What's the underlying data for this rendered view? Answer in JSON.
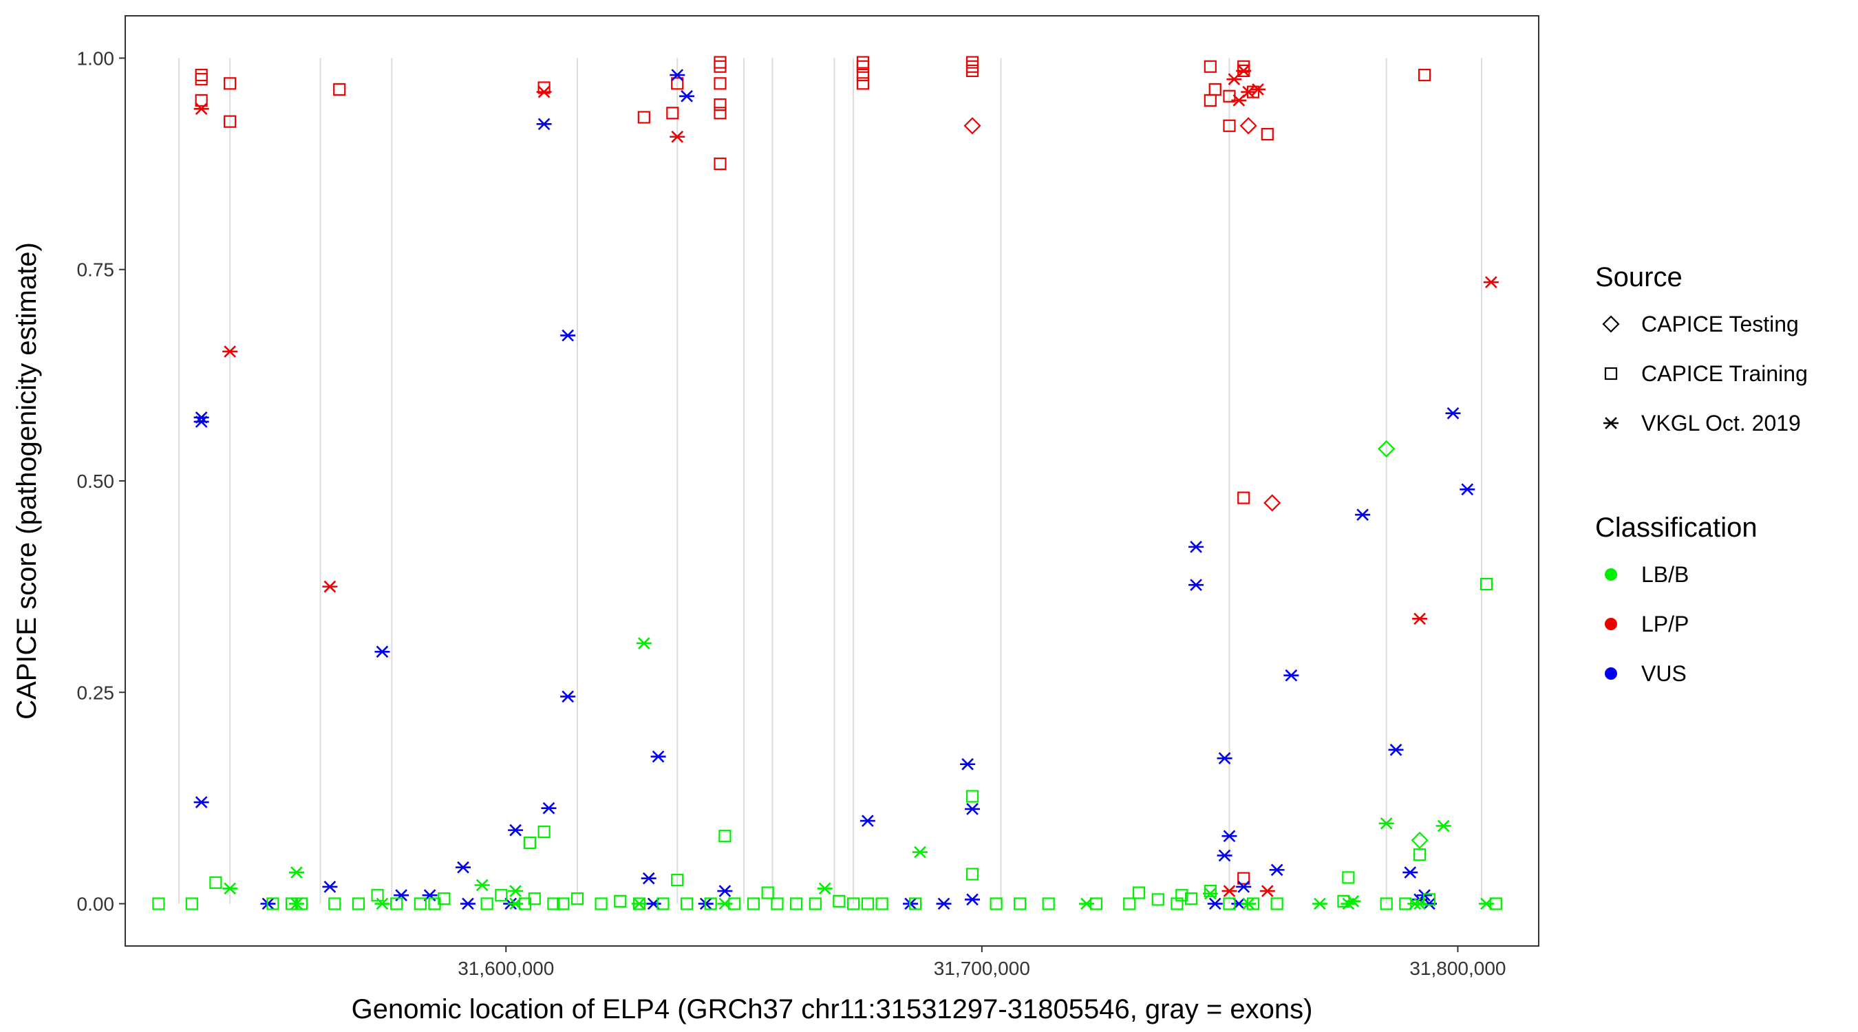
{
  "chart_data": {
    "type": "scatter",
    "title": "",
    "xlabel": "Genomic location of ELP4 (GRCh37 chr11:31531297-31805546, gray = exons)",
    "ylabel": "CAPICE score (pathogenicity estimate)",
    "xlim": [
      31520000,
      31817000
    ],
    "ylim": [
      -0.05,
      1.05
    ],
    "x_ticks": [
      31600000,
      31700000,
      31800000
    ],
    "x_tick_labels": [
      "31,600,000",
      "31,700,000",
      "31,800,000"
    ],
    "y_ticks": [
      0,
      0.25,
      0.5,
      0.75,
      1.0
    ],
    "y_tick_labels": [
      "0.00",
      "0.25",
      "0.50",
      "0.75",
      "1.00"
    ],
    "exons": [
      31531300,
      31542000,
      31561000,
      31576000,
      31615000,
      31636000,
      31650000,
      31656000,
      31669000,
      31673000,
      31704000,
      31752000,
      31785000,
      31805000
    ],
    "colors": {
      "LB/B": "#00ee00",
      "LP/P": "#ee0000",
      "VUS": "#0000ee",
      "exon": "#dcdcdc"
    },
    "legend": {
      "source_title": "Source",
      "sources": [
        {
          "key": "testing",
          "label": "CAPICE Testing",
          "shape": "diamond"
        },
        {
          "key": "training",
          "label": "CAPICE Training",
          "shape": "square"
        },
        {
          "key": "vkgl",
          "label": "VKGL Oct. 2019",
          "shape": "asterisk"
        }
      ],
      "class_title": "Classification",
      "classes": [
        "LB/B",
        "LP/P",
        "VUS"
      ]
    },
    "series": [
      {
        "name": "CAPICE Training LP/P",
        "source": "training",
        "class": "LP/P",
        "points": [
          [
            31536000,
            0.98
          ],
          [
            31536000,
            0.95
          ],
          [
            31536000,
            0.975
          ],
          [
            31542000,
            0.97
          ],
          [
            31542000,
            0.925
          ],
          [
            31565000,
            0.963
          ],
          [
            31608000,
            0.965
          ],
          [
            31629000,
            0.93
          ],
          [
            31635000,
            0.935
          ],
          [
            31636000,
            0.97
          ],
          [
            31645000,
            0.99
          ],
          [
            31645000,
            0.995
          ],
          [
            31645000,
            0.97
          ],
          [
            31645000,
            0.945
          ],
          [
            31645000,
            0.935
          ],
          [
            31645000,
            0.875
          ],
          [
            31675000,
            0.99
          ],
          [
            31675000,
            0.98
          ],
          [
            31675000,
            0.97
          ],
          [
            31675000,
            0.995
          ],
          [
            31698000,
            0.99
          ],
          [
            31698000,
            0.985
          ],
          [
            31698000,
            0.995
          ],
          [
            31748000,
            0.99
          ],
          [
            31749000,
            0.963
          ],
          [
            31748000,
            0.95
          ],
          [
            31752000,
            0.955
          ],
          [
            31752000,
            0.92
          ],
          [
            31755000,
            0.99
          ],
          [
            31755000,
            0.985
          ],
          [
            31757000,
            0.96
          ],
          [
            31760000,
            0.91
          ],
          [
            31755000,
            0.48
          ],
          [
            31755000,
            0.03
          ],
          [
            31793000,
            0.98
          ]
        ]
      },
      {
        "name": "CAPICE Testing LP/P",
        "source": "testing",
        "class": "LP/P",
        "points": [
          [
            31698000,
            0.92
          ],
          [
            31756000,
            0.92
          ],
          [
            31761000,
            0.474
          ]
        ]
      },
      {
        "name": "CAPICE Testing LB/B",
        "source": "testing",
        "class": "LB/B",
        "points": [
          [
            31785000,
            0.538
          ],
          [
            31792000,
            0.075
          ]
        ]
      },
      {
        "name": "VKGL LP/P",
        "source": "vkgl",
        "class": "LP/P",
        "points": [
          [
            31536000,
            0.94
          ],
          [
            31542000,
            0.653
          ],
          [
            31563000,
            0.375
          ],
          [
            31608000,
            0.96
          ],
          [
            31636000,
            0.907
          ],
          [
            31755000,
            0.985
          ],
          [
            31756000,
            0.96
          ],
          [
            31758000,
            0.963
          ],
          [
            31754000,
            0.95
          ],
          [
            31753000,
            0.975
          ],
          [
            31807000,
            0.735
          ],
          [
            31792000,
            0.337
          ],
          [
            31752000,
            0.015
          ],
          [
            31760000,
            0.015
          ]
        ]
      },
      {
        "name": "VKGL VUS",
        "source": "vkgl",
        "class": "VUS",
        "points": [
          [
            31536000,
            0.575
          ],
          [
            31536000,
            0.57
          ],
          [
            31536000,
            0.12
          ],
          [
            31608000,
            0.922
          ],
          [
            31613000,
            0.672
          ],
          [
            31613000,
            0.245
          ],
          [
            31574000,
            0.298
          ],
          [
            31636000,
            0.98
          ],
          [
            31638000,
            0.955
          ],
          [
            31609000,
            0.113
          ],
          [
            31632000,
            0.174
          ],
          [
            31602000,
            0.087
          ],
          [
            31630000,
            0.03
          ],
          [
            31646000,
            0.015
          ],
          [
            31676000,
            0.098
          ],
          [
            31697000,
            0.165
          ],
          [
            31698000,
            0.112
          ],
          [
            31745000,
            0.422
          ],
          [
            31745000,
            0.377
          ],
          [
            31751000,
            0.172
          ],
          [
            31752000,
            0.08
          ],
          [
            31751000,
            0.057
          ],
          [
            31765000,
            0.27
          ],
          [
            31762000,
            0.04
          ],
          [
            31755000,
            0.02
          ],
          [
            31780000,
            0.46
          ],
          [
            31787000,
            0.182
          ],
          [
            31799000,
            0.58
          ],
          [
            31802000,
            0.49
          ],
          [
            31790000,
            0.037
          ],
          [
            31793000,
            0.01
          ],
          [
            31792000,
            0.005
          ],
          [
            31563000,
            0.02
          ],
          [
            31578000,
            0.01
          ],
          [
            31584000,
            0.01
          ],
          [
            31591000,
            0.043
          ],
          [
            31550000,
            0.0
          ],
          [
            31592000,
            0.0
          ],
          [
            31601000,
            0.0
          ],
          [
            31631000,
            0.0
          ],
          [
            31642000,
            0.0
          ],
          [
            31685000,
            0.0
          ],
          [
            31692000,
            0.0
          ],
          [
            31698000,
            0.005
          ],
          [
            31749000,
            0.0
          ],
          [
            31754000,
            0.0
          ],
          [
            31794000,
            0.0
          ]
        ]
      },
      {
        "name": "VKGL LB/B",
        "source": "vkgl",
        "class": "LB/B",
        "points": [
          [
            31542000,
            0.018
          ],
          [
            31556000,
            0.037
          ],
          [
            31629000,
            0.308
          ],
          [
            31595000,
            0.022
          ],
          [
            31602000,
            0.015
          ],
          [
            31667000,
            0.018
          ],
          [
            31687000,
            0.061
          ],
          [
            31785000,
            0.095
          ],
          [
            31797000,
            0.092
          ],
          [
            31556000,
            0.0
          ],
          [
            31574000,
            0.0
          ],
          [
            31602000,
            0.0
          ],
          [
            31628000,
            0.0
          ],
          [
            31646000,
            0.0
          ],
          [
            31722000,
            0.0
          ],
          [
            31748000,
            0.012
          ],
          [
            31756000,
            0.0
          ],
          [
            31771000,
            0.0
          ],
          [
            31777000,
            0.0
          ],
          [
            31792000,
            0.0
          ],
          [
            31806000,
            0.0
          ],
          [
            31791000,
            0.0
          ],
          [
            31778000,
            0.003
          ]
        ]
      },
      {
        "name": "CAPICE Training LB/B",
        "source": "training",
        "class": "LB/B",
        "points": [
          [
            31527000,
            0.0
          ],
          [
            31534000,
            0.0
          ],
          [
            31539000,
            0.025
          ],
          [
            31551000,
            0.0
          ],
          [
            31555000,
            0.0
          ],
          [
            31557000,
            0.0
          ],
          [
            31564000,
            0.0
          ],
          [
            31569000,
            0.0
          ],
          [
            31573000,
            0.01
          ],
          [
            31577000,
            0.0
          ],
          [
            31582000,
            0.0
          ],
          [
            31585000,
            0.0
          ],
          [
            31587000,
            0.006
          ],
          [
            31596000,
            0.0
          ],
          [
            31599000,
            0.01
          ],
          [
            31604000,
            0.0
          ],
          [
            31606000,
            0.006
          ],
          [
            31605000,
            0.072
          ],
          [
            31608000,
            0.085
          ],
          [
            31610000,
            0.0
          ],
          [
            31612000,
            0.0
          ],
          [
            31615000,
            0.006
          ],
          [
            31620000,
            0.0
          ],
          [
            31624000,
            0.003
          ],
          [
            31628000,
            0.0
          ],
          [
            31633000,
            0.0
          ],
          [
            31636000,
            0.028
          ],
          [
            31638000,
            0.0
          ],
          [
            31643000,
            0.0
          ],
          [
            31646000,
            0.08
          ],
          [
            31648000,
            0.0
          ],
          [
            31652000,
            0.0
          ],
          [
            31655000,
            0.013
          ],
          [
            31657000,
            0.0
          ],
          [
            31661000,
            0.0
          ],
          [
            31665000,
            0.0
          ],
          [
            31670000,
            0.003
          ],
          [
            31673000,
            0.0
          ],
          [
            31676000,
            0.0
          ],
          [
            31679000,
            0.0
          ],
          [
            31686000,
            0.0
          ],
          [
            31698000,
            0.127
          ],
          [
            31698000,
            0.035
          ],
          [
            31703000,
            0.0
          ],
          [
            31708000,
            0.0
          ],
          [
            31714000,
            0.0
          ],
          [
            31724000,
            0.0
          ],
          [
            31731000,
            0.0
          ],
          [
            31733000,
            0.013
          ],
          [
            31737000,
            0.005
          ],
          [
            31741000,
            0.0
          ],
          [
            31742000,
            0.01
          ],
          [
            31744000,
            0.006
          ],
          [
            31748000,
            0.015
          ],
          [
            31752000,
            0.0
          ],
          [
            31757000,
            0.0
          ],
          [
            31762000,
            0.0
          ],
          [
            31776000,
            0.003
          ],
          [
            31777000,
            0.031
          ],
          [
            31785000,
            0.0
          ],
          [
            31789000,
            0.0
          ],
          [
            31792000,
            0.058
          ],
          [
            31794000,
            0.005
          ],
          [
            31806000,
            0.378
          ],
          [
            31808000,
            0.0
          ]
        ]
      }
    ]
  }
}
